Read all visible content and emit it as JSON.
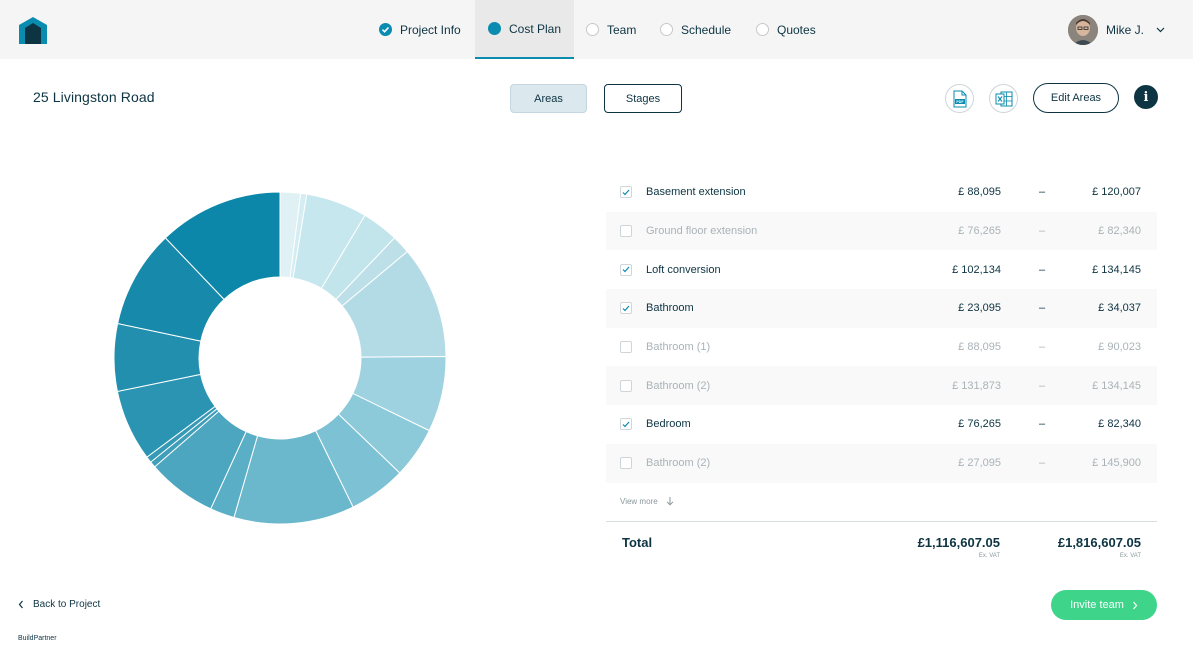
{
  "nav": {
    "steps": [
      {
        "label": "Project Info",
        "state": "done"
      },
      {
        "label": "Cost Plan",
        "state": "current"
      },
      {
        "label": "Team",
        "state": "todo"
      },
      {
        "label": "Schedule",
        "state": "todo"
      },
      {
        "label": "Quotes",
        "state": "todo"
      }
    ],
    "user_name": "Mike J."
  },
  "header": {
    "project_title": "25 Livingston Road",
    "toggle_areas": "Areas",
    "toggle_stages": "Stages",
    "pdf_label": "PDF",
    "edit_areas": "Edit Areas",
    "info": "i"
  },
  "areas": [
    {
      "name": "Basement extension",
      "low": "£ 88,095",
      "dash": "–",
      "high": "£ 120,007",
      "checked": true
    },
    {
      "name": "Ground floor extension",
      "low": "£ 76,265",
      "dash": "–",
      "high": "£ 82,340",
      "checked": false
    },
    {
      "name": "Loft conversion",
      "low": "£ 102,134",
      "dash": "–",
      "high": "£ 134,145",
      "checked": true
    },
    {
      "name": "Bathroom",
      "low": "£ 23,095",
      "dash": "–",
      "high": "£ 34,037",
      "checked": true
    },
    {
      "name": "Bathroom (1)",
      "low": "£ 88,095",
      "dash": "–",
      "high": "£ 90,023",
      "checked": false
    },
    {
      "name": "Bathroom (2)",
      "low": "£ 131,873",
      "dash": "–",
      "high": "£ 134,145",
      "checked": false
    },
    {
      "name": "Bedroom",
      "low": "£ 76,265",
      "dash": "–",
      "high": "£ 82,340",
      "checked": true
    },
    {
      "name": "Bathroom (2)",
      "low": "£ 27,095",
      "dash": "–",
      "high": "£ 145,900",
      "checked": false
    }
  ],
  "view_more": "View more",
  "totals": {
    "label": "Total",
    "low": "£1,116,607.05",
    "high": "£1,816,607.05",
    "low_note": "Ex. VAT",
    "high_note": "Ex. VAT"
  },
  "footer": {
    "back": "Back to Project",
    "invite": "Invite team",
    "brand": "BuildPartner"
  },
  "colors": {
    "primary": "#0a8bb0",
    "dark": "#0d3442",
    "accent_green": "#3ed48a"
  },
  "donut_segments": [
    {
      "value": 2.0,
      "color": "#e0f1f5"
    },
    {
      "value": 0.6,
      "color": "#d4edf2"
    },
    {
      "value": 6.0,
      "color": "#c7e7ee"
    },
    {
      "value": 3.6,
      "color": "#c2e4eb"
    },
    {
      "value": 1.8,
      "color": "#bcdfe8"
    },
    {
      "value": 11.0,
      "color": "#b3dbe6"
    },
    {
      "value": 7.4,
      "color": "#9fd2e0"
    },
    {
      "value": 5.0,
      "color": "#8ccad9"
    },
    {
      "value": 5.6,
      "color": "#7cc2d4"
    },
    {
      "value": 11.8,
      "color": "#6bb8cd"
    },
    {
      "value": 2.4,
      "color": "#5aafc7"
    },
    {
      "value": 6.8,
      "color": "#4ca6c0"
    },
    {
      "value": 0.6,
      "color": "#3f9eba"
    },
    {
      "value": 0.6,
      "color": "#3699b6"
    },
    {
      "value": 7.0,
      "color": "#2b94b2"
    },
    {
      "value": 6.6,
      "color": "#228fae"
    },
    {
      "value": 9.6,
      "color": "#1789aa"
    },
    {
      "value": 12.2,
      "color": "#0c86a9"
    }
  ]
}
